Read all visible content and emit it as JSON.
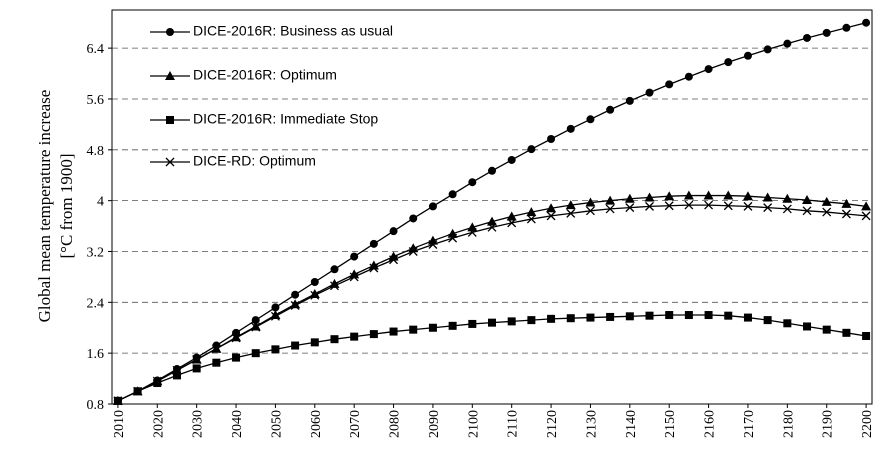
{
  "chart_data": {
    "type": "line",
    "ylabel": [
      "Global mean temperature increase",
      "[°C from 1900]"
    ],
    "x": [
      2010,
      2015,
      2020,
      2025,
      2030,
      2035,
      2040,
      2045,
      2050,
      2055,
      2060,
      2065,
      2070,
      2075,
      2080,
      2085,
      2090,
      2095,
      2100,
      2105,
      2110,
      2115,
      2120,
      2125,
      2130,
      2135,
      2140,
      2145,
      2150,
      2155,
      2160,
      2165,
      2170,
      2175,
      2180,
      2185,
      2190,
      2195,
      2200
    ],
    "series": [
      {
        "name": "DICE-2016R: Business as usual",
        "color": "#000000",
        "marker": "circle",
        "values": [
          0.85,
          1.0,
          1.17,
          1.35,
          1.53,
          1.72,
          1.92,
          2.12,
          2.32,
          2.52,
          2.72,
          2.92,
          3.12,
          3.32,
          3.52,
          3.72,
          3.91,
          4.1,
          4.29,
          4.47,
          4.64,
          4.81,
          4.97,
          5.13,
          5.28,
          5.43,
          5.57,
          5.7,
          5.83,
          5.95,
          6.07,
          6.18,
          6.28,
          6.38,
          6.47,
          6.56,
          6.64,
          6.72,
          6.8
        ]
      },
      {
        "name": "DICE-2016R: Optimum",
        "color": "#000000",
        "marker": "triangle",
        "values": [
          0.85,
          1.0,
          1.16,
          1.33,
          1.5,
          1.67,
          1.85,
          2.02,
          2.2,
          2.37,
          2.53,
          2.69,
          2.84,
          2.98,
          3.12,
          3.25,
          3.37,
          3.48,
          3.58,
          3.67,
          3.75,
          3.82,
          3.88,
          3.93,
          3.97,
          4.0,
          4.03,
          4.05,
          4.07,
          4.08,
          4.08,
          4.08,
          4.07,
          4.05,
          4.03,
          4.01,
          3.98,
          3.95,
          3.91
        ]
      },
      {
        "name": "DICE-2016R: Immediate Stop",
        "color": "#000000",
        "marker": "square",
        "values": [
          0.85,
          1.0,
          1.13,
          1.25,
          1.36,
          1.45,
          1.53,
          1.6,
          1.66,
          1.72,
          1.77,
          1.82,
          1.86,
          1.9,
          1.94,
          1.97,
          2.0,
          2.03,
          2.06,
          2.08,
          2.1,
          2.12,
          2.14,
          2.15,
          2.16,
          2.17,
          2.18,
          2.19,
          2.2,
          2.2,
          2.2,
          2.19,
          2.16,
          2.12,
          2.07,
          2.02,
          1.97,
          1.92,
          1.87
        ]
      },
      {
        "name": "DICE-RD: Optimum",
        "color": "#000000",
        "marker": "cross",
        "values": [
          0.85,
          1.0,
          1.16,
          1.33,
          1.5,
          1.67,
          1.84,
          2.01,
          2.18,
          2.35,
          2.51,
          2.66,
          2.8,
          2.94,
          3.07,
          3.2,
          3.31,
          3.41,
          3.5,
          3.58,
          3.65,
          3.71,
          3.76,
          3.8,
          3.84,
          3.87,
          3.89,
          3.91,
          3.92,
          3.93,
          3.93,
          3.92,
          3.91,
          3.89,
          3.87,
          3.84,
          3.82,
          3.79,
          3.76
        ]
      }
    ],
    "xlim": [
      2008.5,
      2201.5
    ],
    "xticks": [
      2010,
      2020,
      2030,
      2040,
      2050,
      2060,
      2070,
      2080,
      2090,
      2100,
      2110,
      2120,
      2130,
      2140,
      2150,
      2160,
      2170,
      2180,
      2190,
      2200
    ],
    "ylim": [
      0.8,
      7.0
    ],
    "yticks": [
      0.8,
      1.6,
      2.4,
      3.2,
      4,
      4.8,
      5.6,
      6.4
    ],
    "grid": true,
    "legend": "upper left"
  }
}
